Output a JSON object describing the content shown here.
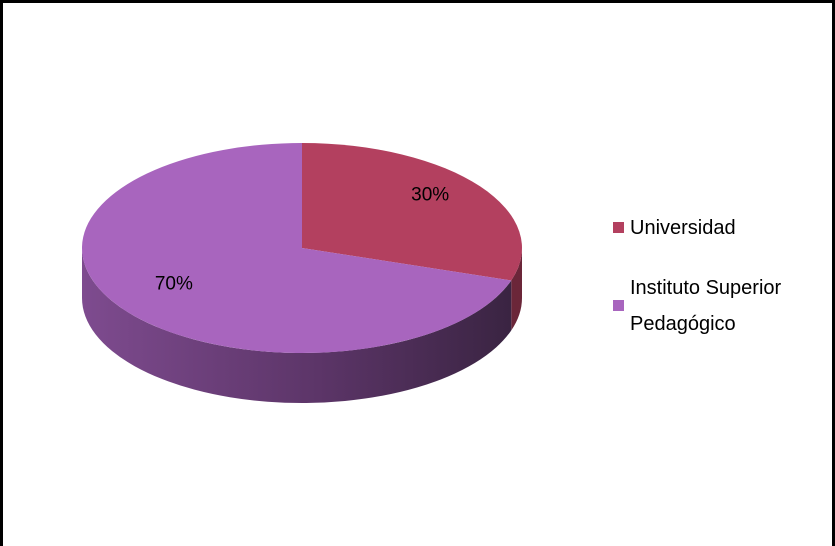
{
  "chart_data": {
    "type": "pie",
    "categories": [
      "Universidad",
      "Instituto Superior Pedagógico"
    ],
    "values": [
      30,
      70
    ],
    "value_labels": [
      "30%",
      "70%"
    ],
    "colors": [
      "#b3405f",
      "#a865be"
    ],
    "start_angle": -90,
    "legend": "right"
  }
}
